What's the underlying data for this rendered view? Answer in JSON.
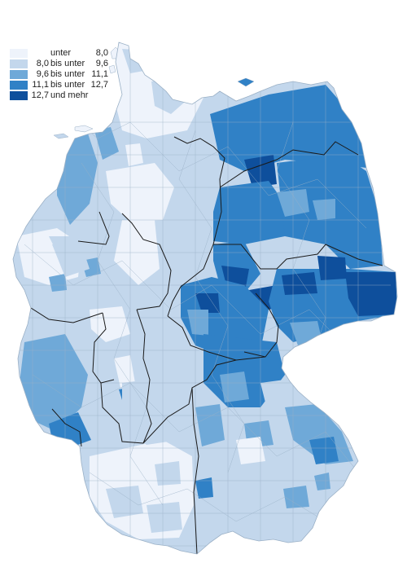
{
  "colors": {
    "class_1": "#eef3fb",
    "class_2": "#c3d7ec",
    "class_3": "#6fa9d8",
    "class_4": "#3081c6",
    "class_5": "#0e4f9c",
    "district_border": "#9ab0c6",
    "state_border": "#1a1a1a",
    "background": "#ffffff"
  },
  "legend": {
    "items": [
      {
        "from": "",
        "mid": "unter",
        "to": "8,0",
        "color": "#eef3fb"
      },
      {
        "from": "8,0",
        "mid": "bis unter",
        "to": "9,6",
        "color": "#c3d7ec"
      },
      {
        "from": "9,6",
        "mid": "bis unter",
        "to": "11,1",
        "color": "#6fa9d8"
      },
      {
        "from": "11,1",
        "mid": "bis unter",
        "to": "12,7",
        "color": "#3081c6"
      },
      {
        "from": "12,7",
        "mid": "und mehr",
        "to": "",
        "color": "#0e4f9c"
      }
    ]
  }
}
